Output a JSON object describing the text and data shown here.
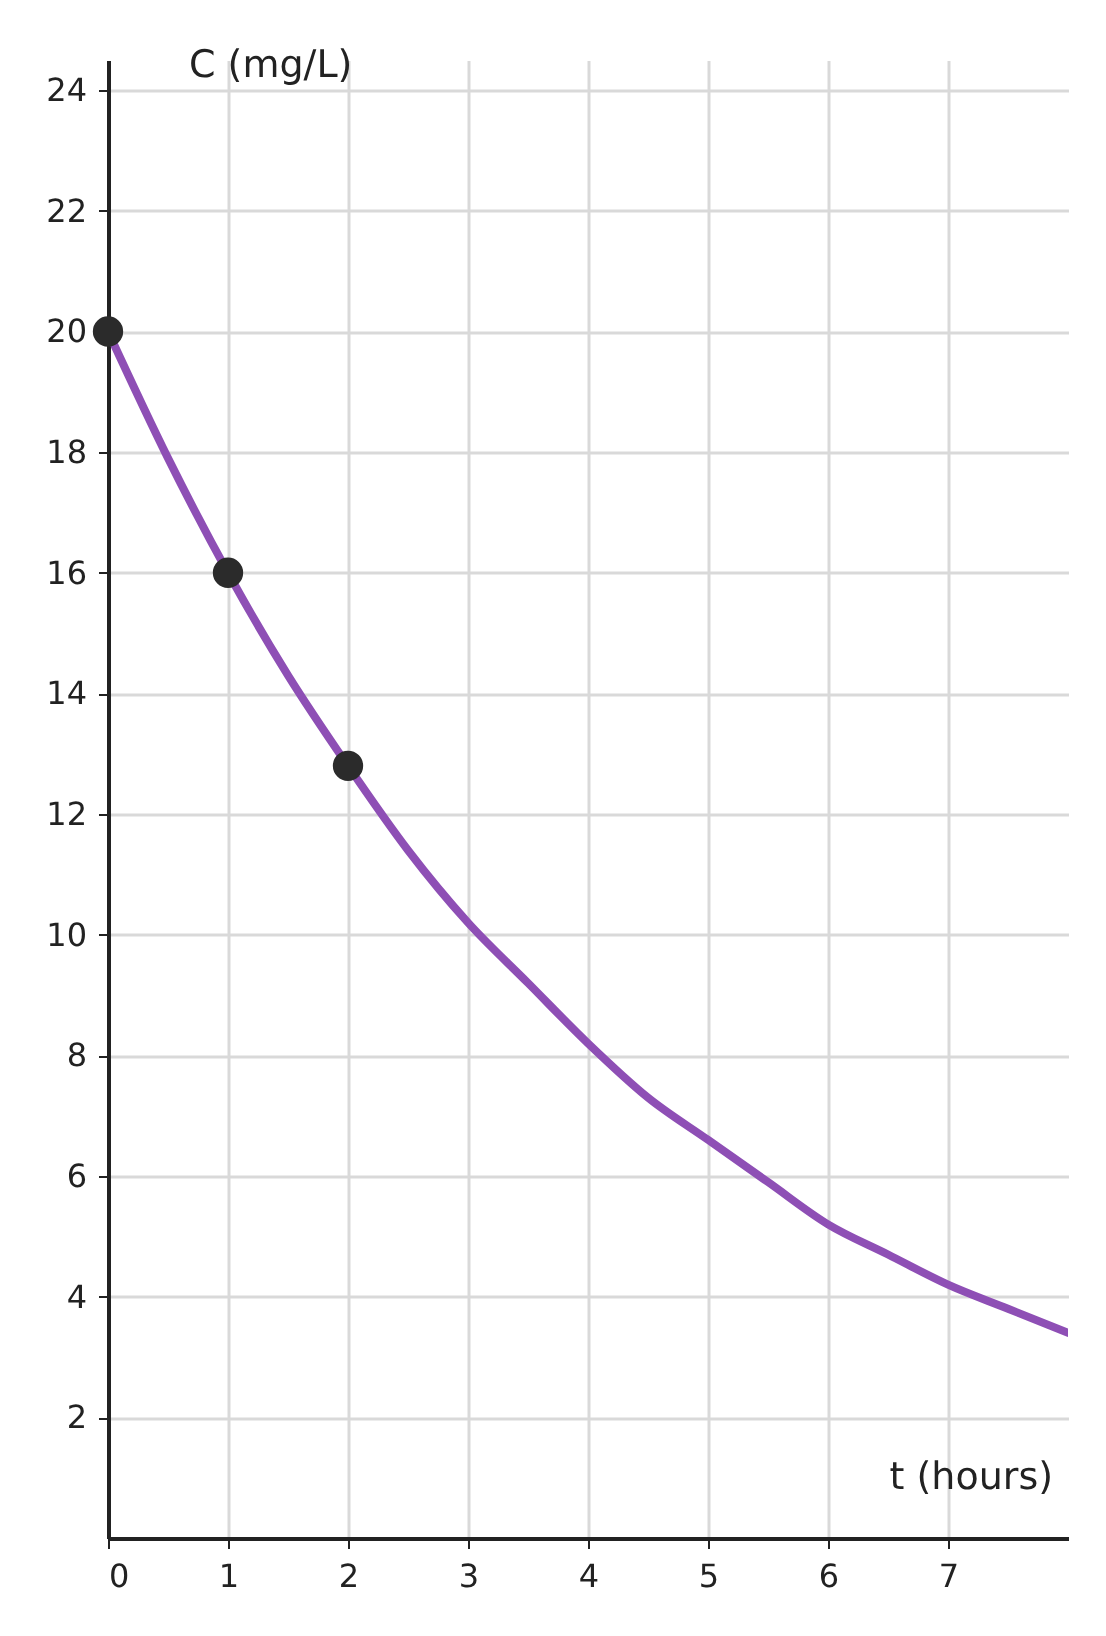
{
  "chart_data": {
    "type": "line",
    "xlabel": "t (hours)",
    "ylabel": "C (mg/L)",
    "xlim": [
      0,
      8
    ],
    "ylim": [
      0,
      24.5
    ],
    "xticks": [
      0,
      1,
      2,
      3,
      4,
      5,
      6,
      7
    ],
    "yticks": [
      2,
      4,
      6,
      8,
      10,
      12,
      14,
      16,
      18,
      20,
      22,
      24
    ],
    "grid": true,
    "series": [
      {
        "color": "#8e4fb5",
        "x": [
          0,
          0.5,
          1,
          1.5,
          2,
          2.5,
          3,
          3.5,
          4,
          4.5,
          5,
          5.5,
          6,
          6.5,
          7,
          7.5,
          8
        ],
        "values": [
          20,
          17.9,
          16,
          14.3,
          12.8,
          11.4,
          10.2,
          9.2,
          8.2,
          7.3,
          6.6,
          5.9,
          5.2,
          4.7,
          4.2,
          3.8,
          3.4
        ],
        "line_style": "solid",
        "marker": "none"
      },
      {
        "type": "scatter",
        "color": "#2b2b2b",
        "x": [
          0,
          1,
          2
        ],
        "values": [
          20,
          16,
          12.8
        ],
        "marker": "circle"
      }
    ]
  }
}
